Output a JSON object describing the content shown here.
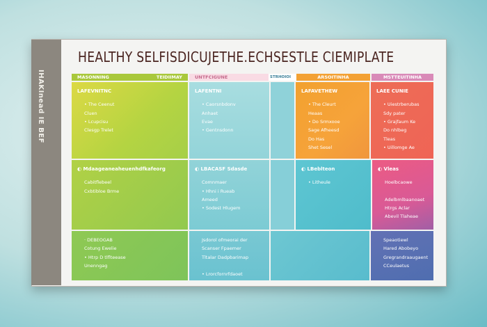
{
  "title": "HEALTHY SELFISDICUJETHE.ECHSESTLE  CIEMIPLATE",
  "side_label": "IHAKInead IE BEF",
  "headers": [
    {
      "label": "MASONNING",
      "color": "#a9c83c"
    },
    {
      "label": "TEIDIIMAY",
      "color": "#a9c83c"
    },
    {
      "label": "UNTFCIGUNE",
      "color": "#f9dbe4"
    },
    {
      "label": "STRHOIOI",
      "color": "#ffffff"
    },
    {
      "label": "ARSOITINHA",
      "color": "#f3a134"
    },
    {
      "label": "MSTTEUITINHA",
      "color": "#d98ab8"
    }
  ],
  "cells": [
    {
      "heading": "LAFEVNITNC",
      "items": [
        "• The Ceenut",
        "Cluen",
        "• Lcupcisu",
        "Clesgp Trelet"
      ]
    },
    {
      "heading": "LAFENTNI",
      "items": [
        "• Caorsnbdonv",
        "Anhaet",
        "Evae",
        "• Gentnsdonn"
      ]
    },
    {
      "heading": "",
      "items": []
    },
    {
      "heading": "LAFAVETHEW",
      "items": [
        "• The Cleurt",
        "Heaas",
        "• Do Srmxooe",
        "Sage Afheesd",
        "Do Has",
        "Shet Sesel"
      ]
    },
    {
      "heading": "LAEE CUNIE",
      "items": [
        "• Uiestrberubas",
        "Sdy pater",
        "• Grajfaum Ke",
        "Do nhlbeg",
        "Tleas",
        "• Uillomge Ae"
      ]
    },
    {
      "heading": "◐ Mdaageaneaheuenhdfkafeorg",
      "items": [
        "Cabitflebeel",
        "Cxbtibloe Brme"
      ]
    },
    {
      "heading": "◐ LBACASF Sdasde",
      "items": [
        "Comnmaer",
        "• Hhni i Rueab",
        "Ameed",
        "• Sodest Hlugem"
      ]
    },
    {
      "heading": "◐ LBeblteon",
      "items": [
        "• Litheule"
      ]
    },
    {
      "heading": "◐ Vleas",
      "items": [
        "Hoelbcaowe",
        "",
        "Adelbmlbaanoaet",
        "Htrgs Aclar",
        "Abevil Tlaheae"
      ]
    },
    {
      "heading": "",
      "items": [
        "· DEBEOGAB",
        "Cotung Ewelie",
        "• Htrp D tlflteease",
        "Unenngag"
      ]
    },
    {
      "heading": "",
      "items": [
        "Jsdorol ofmeorai der",
        "Scanser Fpaemer",
        "  Tltalar   Dadpbarimap",
        "",
        "• Lrorcfornrfdaoet"
      ]
    },
    {
      "heading": "",
      "items": []
    },
    {
      "heading": "",
      "items": [
        "Speaotiewl",
        "Hared Abobeyo",
        "Gregrandraaugaent",
        "CCeulaetus"
      ]
    }
  ],
  "colors": {
    "title": "#4a2420",
    "strip": "#8c877f"
  }
}
